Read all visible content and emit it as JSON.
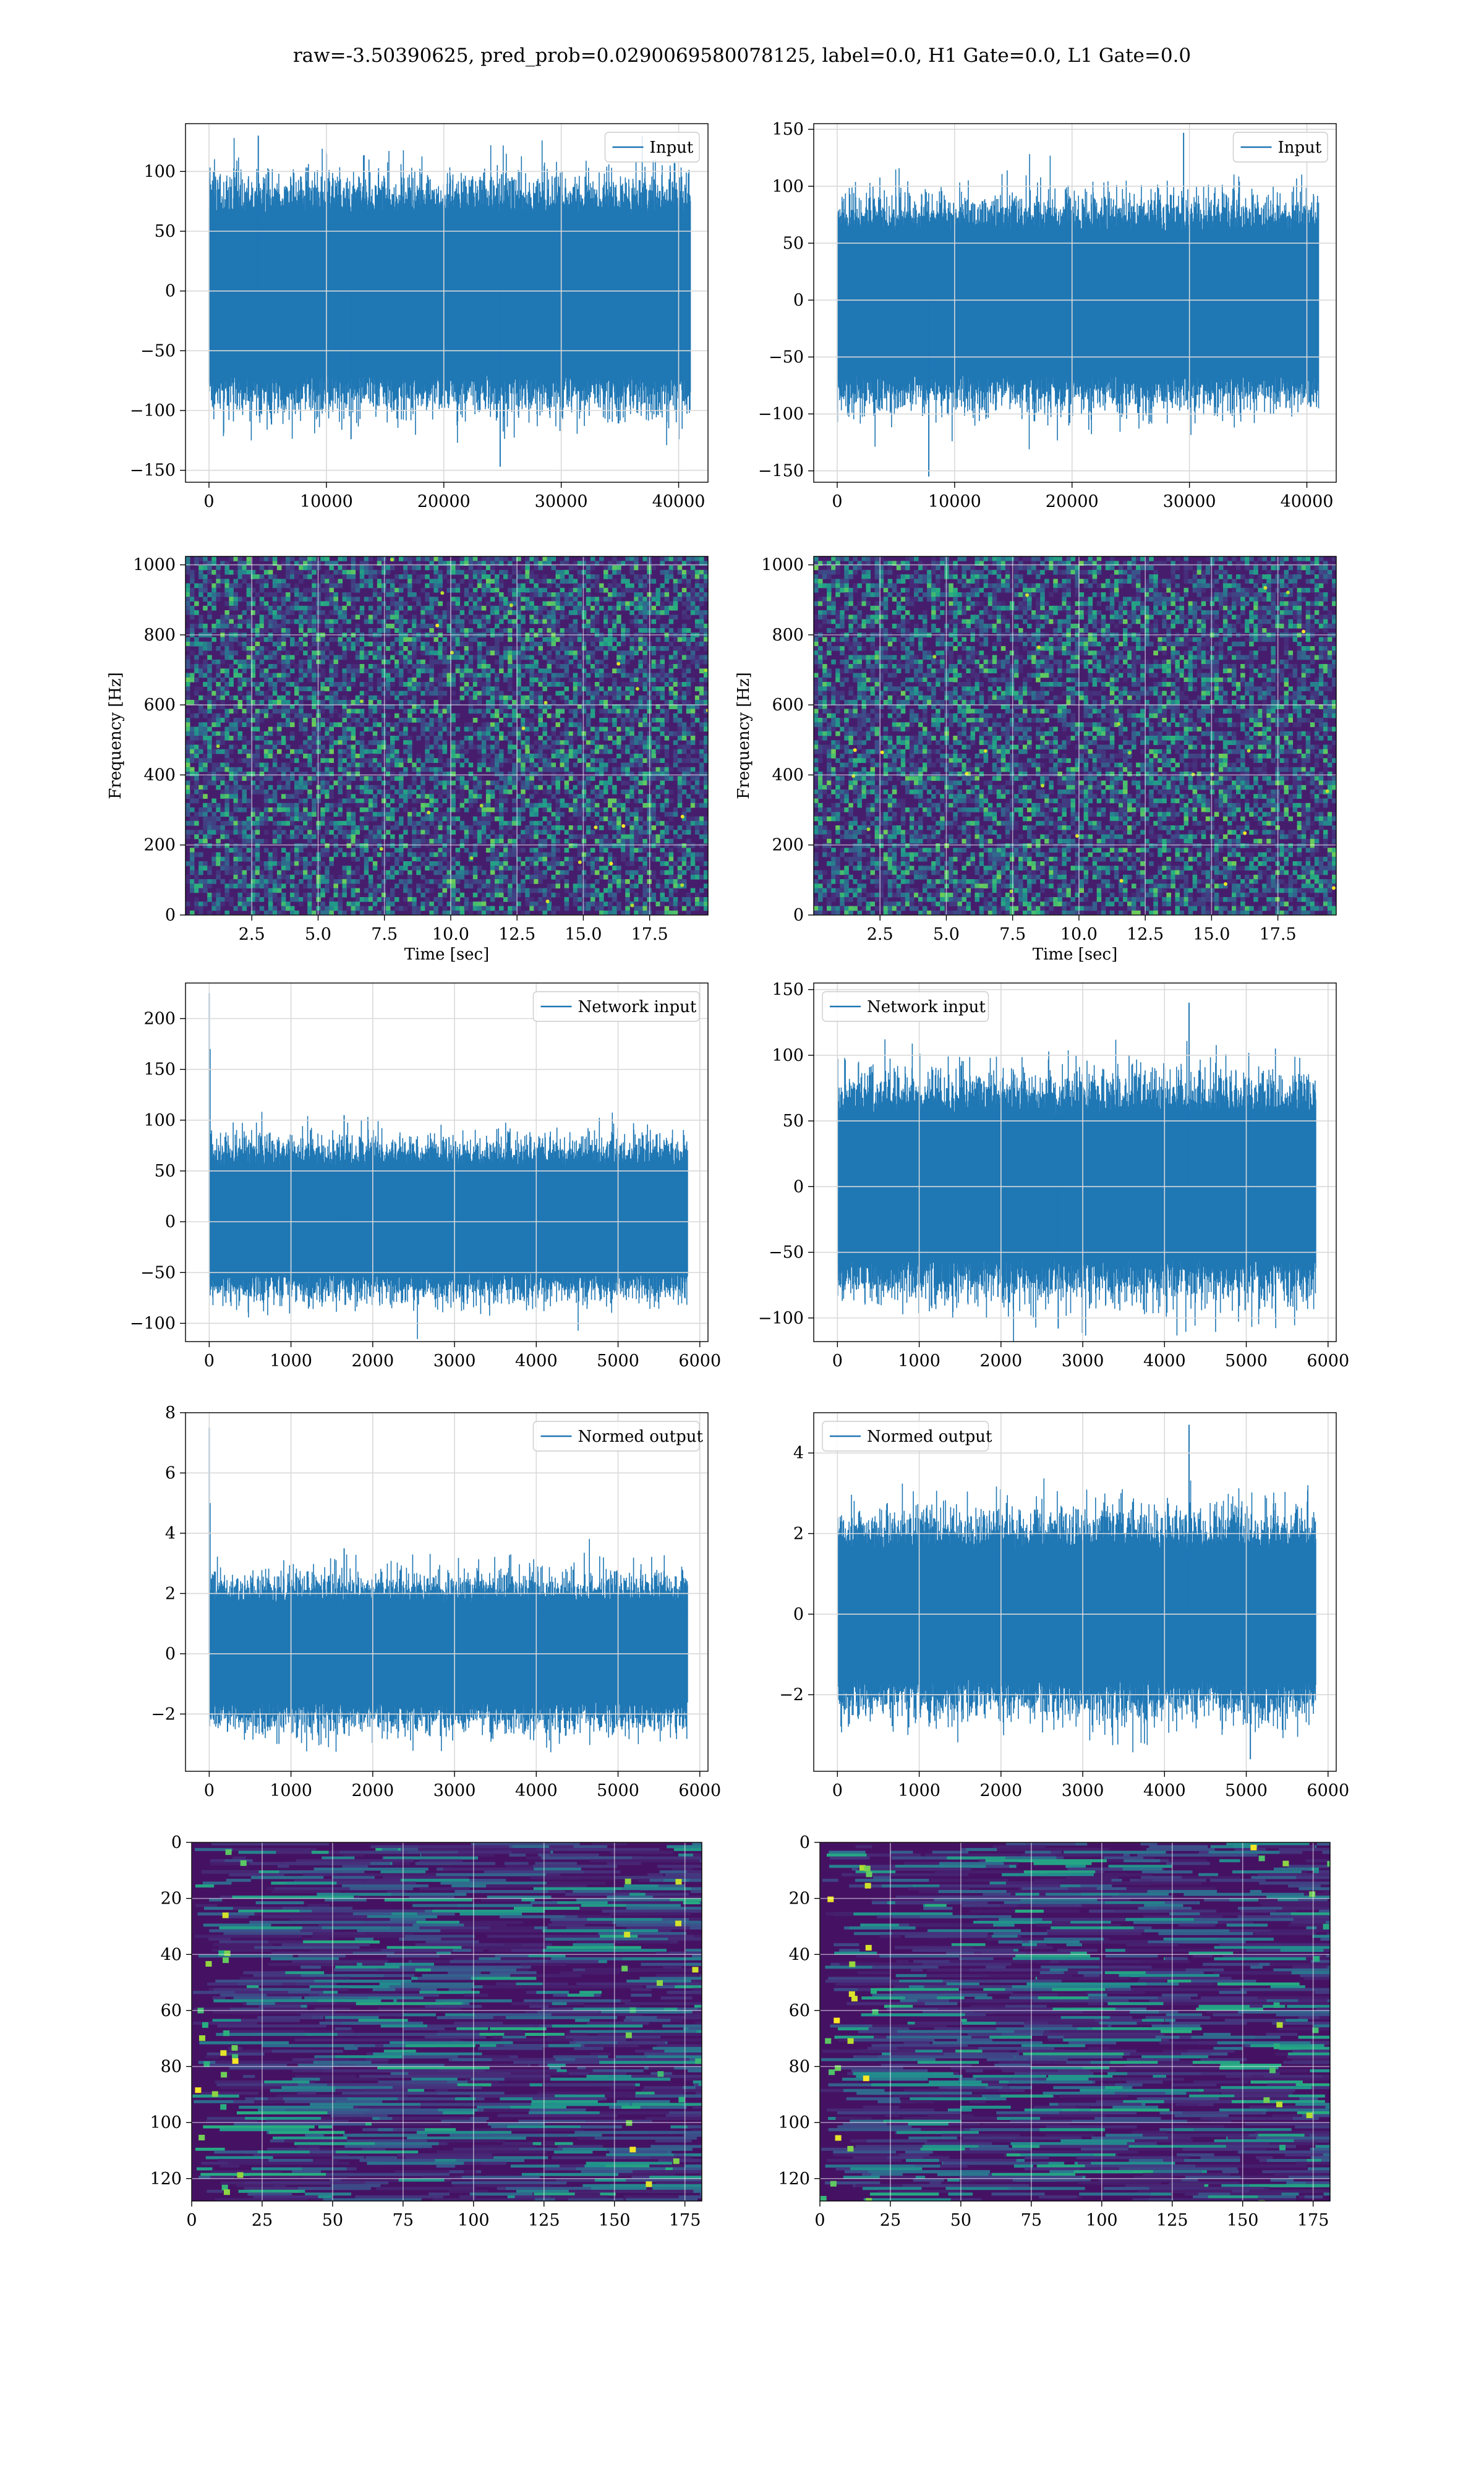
{
  "suptitle": "raw=-3.50390625, pred_prob=0.0290069580078125, label=0.0, H1 Gate=0.0, L1 Gate=0.0",
  "colors": {
    "line": "#1f77b4",
    "grid": "#d9d9d9",
    "axis": "#000000"
  },
  "chart_data": [
    {
      "id": "p1",
      "type": "line",
      "legend": "Input",
      "xlim": [
        -2000,
        42500
      ],
      "ylim": [
        -160,
        140
      ],
      "xticks": [
        0,
        10000,
        20000,
        30000,
        40000
      ],
      "xtick_labels": [
        "0",
        "10000",
        "20000",
        "30000",
        "40000"
      ],
      "yticks": [
        -150,
        -100,
        -50,
        0,
        50,
        100
      ],
      "ytick_labels": [
        "−150",
        "−100",
        "−50",
        "0",
        "50",
        "100"
      ],
      "band_low": -70,
      "band_high": 65,
      "x_end": 41000,
      "spikes": [
        [
          4200,
          130
        ],
        [
          24800,
          -147
        ],
        [
          12100,
          -124
        ]
      ],
      "amp": 40
    },
    {
      "id": "p2",
      "type": "line",
      "legend": "Input",
      "xlim": [
        -2000,
        42500
      ],
      "ylim": [
        -160,
        155
      ],
      "xticks": [
        0,
        10000,
        20000,
        30000,
        40000
      ],
      "xtick_labels": [
        "0",
        "10000",
        "20000",
        "30000",
        "40000"
      ],
      "yticks": [
        -150,
        -100,
        -50,
        0,
        50,
        100,
        150
      ],
      "ytick_labels": [
        "−150",
        "−100",
        "−50",
        "0",
        "50",
        "100",
        "150"
      ],
      "band_low": -65,
      "band_high": 60,
      "x_end": 41000,
      "spikes": [
        [
          29500,
          147
        ],
        [
          7800,
          -155
        ]
      ],
      "amp": 40
    },
    {
      "id": "p3",
      "type": "spectrogram",
      "xlim": [
        0,
        19.7
      ],
      "ylim": [
        0,
        1024
      ],
      "xticks": [
        2.5,
        5.0,
        7.5,
        10.0,
        12.5,
        15.0,
        17.5
      ],
      "xtick_labels": [
        "2.5",
        "5.0",
        "7.5",
        "10.0",
        "12.5",
        "15.0",
        "17.5"
      ],
      "yticks": [
        0,
        200,
        400,
        600,
        800,
        1000
      ],
      "ytick_labels": [
        "0",
        "200",
        "400",
        "600",
        "800",
        "1000"
      ],
      "xlabel": "Time [sec]",
      "ylabel": "Frequency [Hz]"
    },
    {
      "id": "p4",
      "type": "spectrogram",
      "xlim": [
        0,
        19.7
      ],
      "ylim": [
        0,
        1024
      ],
      "xticks": [
        2.5,
        5.0,
        7.5,
        10.0,
        12.5,
        15.0,
        17.5
      ],
      "xtick_labels": [
        "2.5",
        "5.0",
        "7.5",
        "10.0",
        "12.5",
        "15.0",
        "17.5"
      ],
      "yticks": [
        0,
        200,
        400,
        600,
        800,
        1000
      ],
      "ytick_labels": [
        "0",
        "200",
        "400",
        "600",
        "800",
        "1000"
      ],
      "xlabel": "Time [sec]",
      "ylabel": "Frequency [Hz]"
    },
    {
      "id": "p5",
      "type": "line",
      "legend": "Network input",
      "xlim": [
        -290,
        6100
      ],
      "ylim": [
        -118,
        235
      ],
      "xticks": [
        0,
        1000,
        2000,
        3000,
        4000,
        5000,
        6000
      ],
      "xtick_labels": [
        "0",
        "1000",
        "2000",
        "3000",
        "4000",
        "5000",
        "6000"
      ],
      "yticks": [
        -100,
        -50,
        0,
        50,
        100,
        150,
        200
      ],
      "ytick_labels": [
        "−100",
        "−50",
        "0",
        "50",
        "100",
        "150",
        "200"
      ],
      "band_low": -50,
      "band_high": 55,
      "x_end": 5850,
      "spikes": [
        [
          0,
          225
        ],
        [
          10,
          170
        ],
        [
          1650,
          105
        ]
      ],
      "amp": 35
    },
    {
      "id": "p6",
      "type": "line",
      "legend": "Network input",
      "xlim": [
        -290,
        6100
      ],
      "ylim": [
        -118,
        155
      ],
      "xticks": [
        0,
        1000,
        2000,
        3000,
        4000,
        5000,
        6000
      ],
      "xtick_labels": [
        "0",
        "1000",
        "2000",
        "3000",
        "4000",
        "5000",
        "6000"
      ],
      "yticks": [
        -100,
        -50,
        0,
        50,
        100,
        150
      ],
      "ytick_labels": [
        "−100",
        "−50",
        "0",
        "50",
        "100",
        "150"
      ],
      "band_low": -55,
      "band_high": 55,
      "x_end": 5850,
      "spikes": [
        [
          4300,
          140
        ],
        [
          2700,
          -108
        ]
      ],
      "amp": 40
    },
    {
      "id": "p7",
      "type": "line",
      "legend": "Normed output",
      "xlim": [
        -290,
        6100
      ],
      "ylim": [
        -3.9,
        8.0
      ],
      "xticks": [
        0,
        1000,
        2000,
        3000,
        4000,
        5000,
        6000
      ],
      "xtick_labels": [
        "0",
        "1000",
        "2000",
        "3000",
        "4000",
        "5000",
        "6000"
      ],
      "yticks": [
        -2,
        0,
        2,
        4,
        6,
        8
      ],
      "ytick_labels": [
        "−2",
        "0",
        "2",
        "4",
        "6",
        "8"
      ],
      "band_low": -1.6,
      "band_high": 1.7,
      "x_end": 5850,
      "spikes": [
        [
          0,
          7.5
        ],
        [
          10,
          5.0
        ],
        [
          1650,
          3.5
        ]
      ],
      "amp": 1.2
    },
    {
      "id": "p8",
      "type": "line",
      "legend": "Normed output",
      "xlim": [
        -290,
        6100
      ],
      "ylim": [
        -3.9,
        5.0
      ],
      "xticks": [
        0,
        1000,
        2000,
        3000,
        4000,
        5000,
        6000
      ],
      "xtick_labels": [
        "0",
        "1000",
        "2000",
        "3000",
        "4000",
        "5000",
        "6000"
      ],
      "yticks": [
        -2,
        0,
        2,
        4
      ],
      "ytick_labels": [
        "−2",
        "0",
        "2",
        "4"
      ],
      "band_low": -1.6,
      "band_high": 1.6,
      "x_end": 5850,
      "spikes": [
        [
          4300,
          4.7
        ],
        [
          5050,
          -3.6
        ]
      ],
      "amp": 1.2
    },
    {
      "id": "p9",
      "type": "heatmap",
      "xlim": [
        0,
        181
      ],
      "ylim": [
        128,
        0
      ],
      "rows": 128,
      "cols": 181,
      "xticks": [
        0,
        25,
        50,
        75,
        100,
        125,
        150,
        175
      ],
      "xtick_labels": [
        "0",
        "25",
        "50",
        "75",
        "100",
        "125",
        "150",
        "175"
      ],
      "yticks": [
        0,
        20,
        40,
        60,
        80,
        100,
        120
      ],
      "ytick_labels": [
        "0",
        "20",
        "40",
        "60",
        "80",
        "100",
        "120"
      ]
    },
    {
      "id": "p10",
      "type": "heatmap",
      "xlim": [
        0,
        181
      ],
      "ylim": [
        128,
        0
      ],
      "rows": 128,
      "cols": 181,
      "xticks": [
        0,
        25,
        50,
        75,
        100,
        125,
        150,
        175
      ],
      "xtick_labels": [
        "0",
        "25",
        "50",
        "75",
        "100",
        "125",
        "150",
        "175"
      ],
      "yticks": [
        0,
        20,
        40,
        60,
        80,
        100,
        120
      ],
      "ytick_labels": [
        "0",
        "20",
        "40",
        "60",
        "80",
        "100",
        "120"
      ]
    }
  ]
}
